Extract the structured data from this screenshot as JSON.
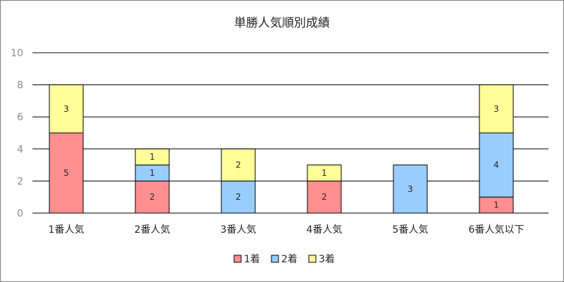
{
  "chart_data": {
    "type": "bar",
    "stacked": true,
    "title": "単勝人気順別成績",
    "xlabel": "",
    "ylabel": "",
    "ylim": [
      0,
      10
    ],
    "yticks": [
      "0",
      "2",
      "4",
      "6",
      "8",
      "10"
    ],
    "grid": true,
    "legend_position": "bottom",
    "categories": [
      "1番人気",
      "2番人気",
      "3番人気",
      "4番人気",
      "5番人気",
      "6番人気以下"
    ],
    "series": [
      {
        "name": "1着",
        "color": "#ff8f8f",
        "values": [
          5,
          2,
          0,
          2,
          0,
          1
        ]
      },
      {
        "name": "2着",
        "color": "#99ccff",
        "values": [
          0,
          1,
          2,
          0,
          3,
          4
        ]
      },
      {
        "name": "3着",
        "color": "#ffff99",
        "values": [
          3,
          1,
          2,
          1,
          0,
          3
        ]
      }
    ]
  }
}
